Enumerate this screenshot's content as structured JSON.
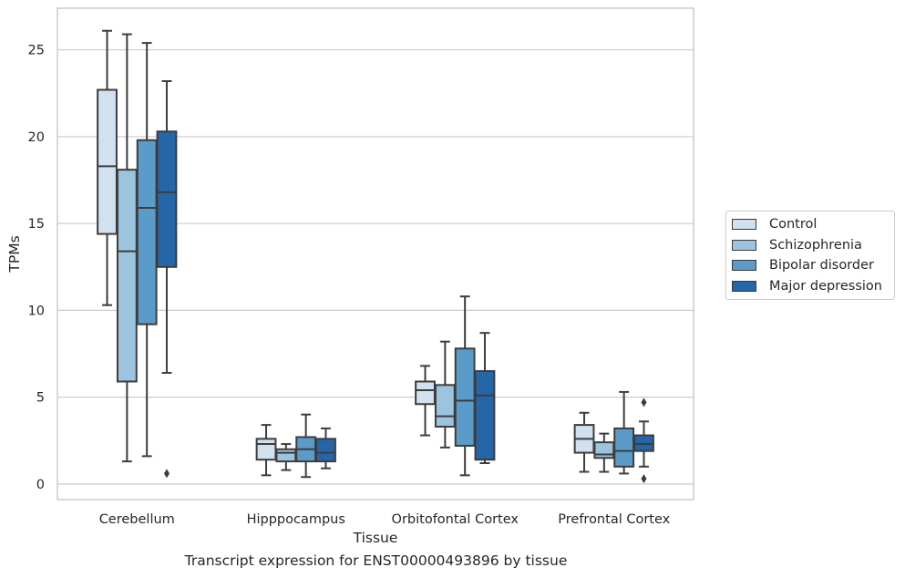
{
  "chart_data": {
    "type": "boxplot",
    "title": "",
    "caption": "Transcript expression for ENST00000493896 by tissue",
    "xlabel": "Tissue",
    "ylabel": "TPMs",
    "ylim": [
      -0.9,
      27.4
    ],
    "yticks": [
      0,
      5,
      10,
      15,
      20,
      25
    ],
    "grid": "horizontal",
    "legend_placement": "right",
    "categories": [
      "Cerebellum",
      "Hipppocampus",
      "Orbitofontal Cortex",
      "Prefrontal Cortex"
    ],
    "series": [
      {
        "name": "Control",
        "color": "#d1e1f0",
        "boxes": [
          {
            "whislo": 10.3,
            "q1": 14.4,
            "med": 18.3,
            "q3": 22.7,
            "whishi": 26.1,
            "fliers": []
          },
          {
            "whislo": 0.5,
            "q1": 1.4,
            "med": 2.3,
            "q3": 2.6,
            "whishi": 3.4,
            "fliers": []
          },
          {
            "whislo": 2.8,
            "q1": 4.6,
            "med": 5.4,
            "q3": 5.9,
            "whishi": 6.8,
            "fliers": []
          },
          {
            "whislo": 0.7,
            "q1": 1.8,
            "med": 2.6,
            "q3": 3.4,
            "whishi": 4.1,
            "fliers": []
          }
        ]
      },
      {
        "name": "Schizophrenia",
        "color": "#9cc4de",
        "boxes": [
          {
            "whislo": 1.3,
            "q1": 5.9,
            "med": 13.4,
            "q3": 18.1,
            "whishi": 25.9,
            "fliers": []
          },
          {
            "whislo": 0.8,
            "q1": 1.3,
            "med": 1.8,
            "q3": 2.0,
            "whishi": 2.3,
            "fliers": []
          },
          {
            "whislo": 2.1,
            "q1": 3.3,
            "med": 3.9,
            "q3": 5.7,
            "whishi": 8.2,
            "fliers": []
          },
          {
            "whislo": 0.7,
            "q1": 1.5,
            "med": 1.7,
            "q3": 2.4,
            "whishi": 2.9,
            "fliers": []
          }
        ]
      },
      {
        "name": "Bipolar disorder",
        "color": "#5b9bc9",
        "boxes": [
          {
            "whislo": 1.6,
            "q1": 9.2,
            "med": 15.9,
            "q3": 19.8,
            "whishi": 25.4,
            "fliers": []
          },
          {
            "whislo": 0.4,
            "q1": 1.3,
            "med": 2.0,
            "q3": 2.7,
            "whishi": 4.0,
            "fliers": []
          },
          {
            "whislo": 0.5,
            "q1": 2.2,
            "med": 4.8,
            "q3": 7.8,
            "whishi": 10.8,
            "fliers": []
          },
          {
            "whislo": 0.6,
            "q1": 1.0,
            "med": 1.9,
            "q3": 3.2,
            "whishi": 5.3,
            "fliers": []
          }
        ]
      },
      {
        "name": "Major depression",
        "color": "#2566a8",
        "boxes": [
          {
            "whislo": 6.4,
            "q1": 12.5,
            "med": 16.8,
            "q3": 20.3,
            "whishi": 23.2,
            "fliers": [
              0.6
            ]
          },
          {
            "whislo": 0.9,
            "q1": 1.3,
            "med": 1.8,
            "q3": 2.6,
            "whishi": 3.2,
            "fliers": []
          },
          {
            "whislo": 1.2,
            "q1": 1.4,
            "med": 5.1,
            "q3": 6.5,
            "whishi": 8.7,
            "fliers": []
          },
          {
            "whislo": 1.0,
            "q1": 1.9,
            "med": 2.3,
            "q3": 2.8,
            "whishi": 3.6,
            "fliers": [
              4.7,
              0.3
            ]
          }
        ]
      }
    ]
  }
}
